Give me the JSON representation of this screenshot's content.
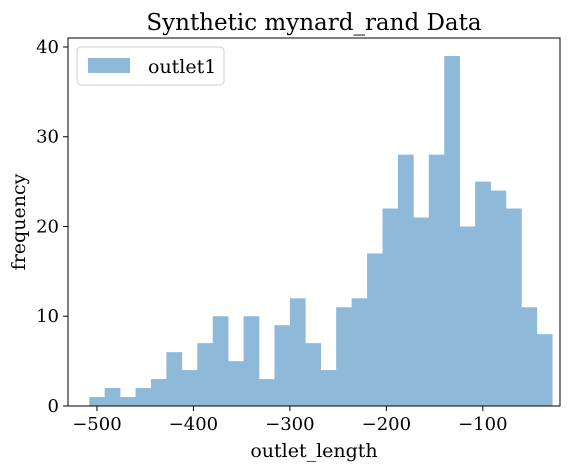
{
  "chart_data": {
    "type": "bar",
    "title": "Synthetic mynard_rand Data",
    "xlabel": "outlet_length",
    "ylabel": "frequency",
    "xlim": [
      -530,
      -20
    ],
    "ylim": [
      0,
      41
    ],
    "xticks": [
      -500,
      -400,
      -300,
      -200,
      -100
    ],
    "xtick_labels": [
      "−500",
      "−400",
      "−300",
      "−200",
      "−100"
    ],
    "yticks": [
      0,
      10,
      20,
      30,
      40
    ],
    "ytick_labels": [
      "0",
      "10",
      "20",
      "30",
      "40"
    ],
    "grid": false,
    "legend_position": "top-left",
    "colors": {
      "bar": "#8fb9d9",
      "axis": "#000000",
      "background": "#ffffff"
    },
    "series": [
      {
        "name": "outlet1",
        "bin_edges": [
          -508,
          -492,
          -476,
          -460,
          -444,
          -428,
          -412,
          -396,
          -380,
          -364,
          -348,
          -332,
          -316,
          -300,
          -284,
          -268,
          -252,
          -236,
          -220,
          -204,
          -188,
          -172,
          -156,
          -140,
          -124,
          -108,
          -92,
          -76,
          -60,
          -44,
          -28
        ],
        "counts": [
          1,
          2,
          1,
          2,
          3,
          6,
          4,
          7,
          10,
          5,
          10,
          3,
          9,
          12,
          7,
          4,
          11,
          12,
          17,
          22,
          28,
          21,
          28,
          39,
          20,
          25,
          24,
          22,
          11,
          8
        ]
      }
    ]
  }
}
